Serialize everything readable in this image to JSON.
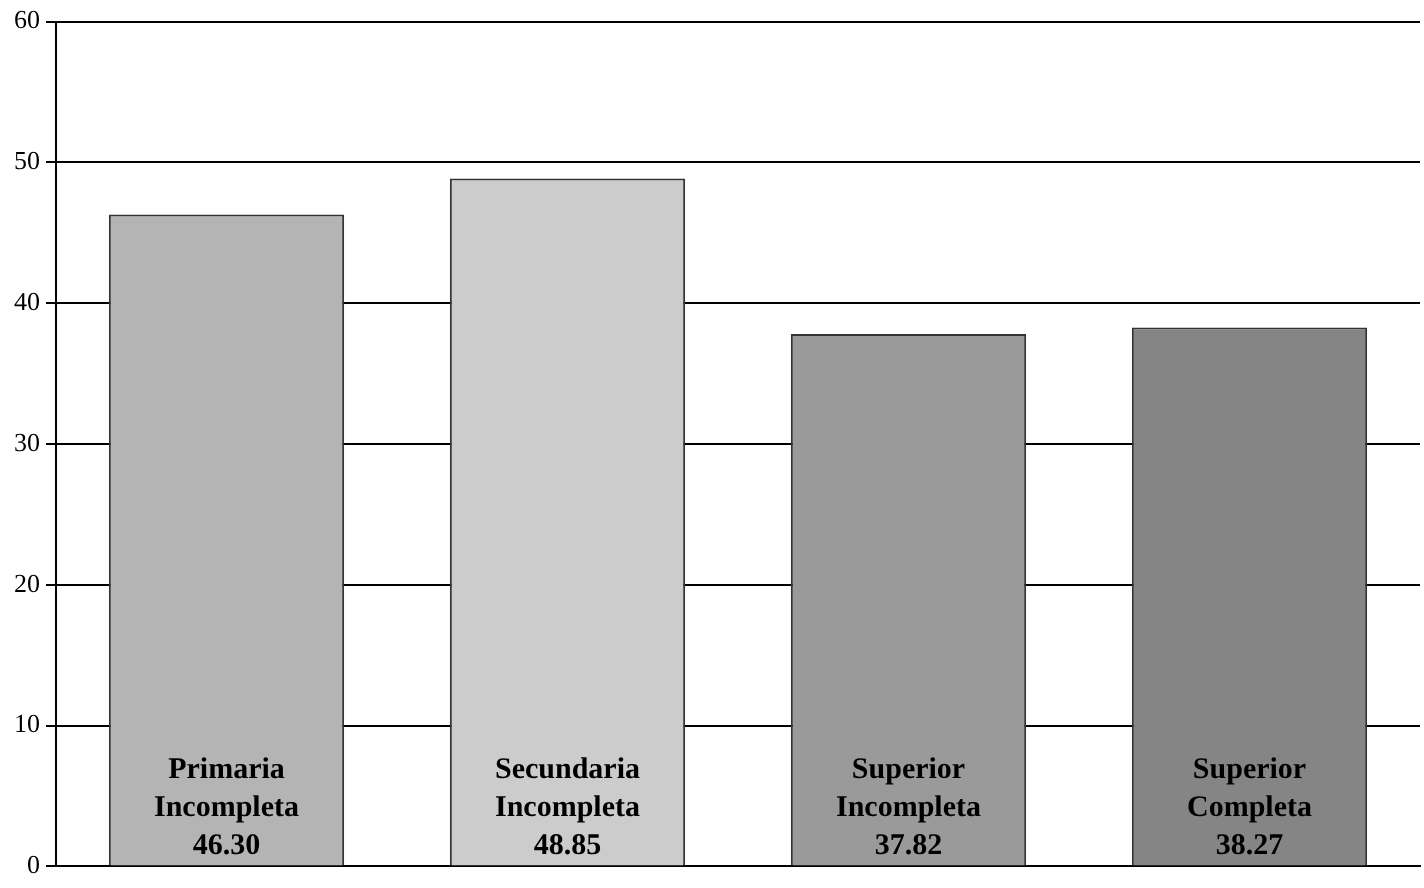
{
  "chart_data": {
    "type": "bar",
    "categories": [
      "Primaria Incompleta",
      "Secundaria Incompleta",
      "Superior Incompleta",
      "Superior Completa"
    ],
    "values": [
      46.3,
      48.85,
      37.82,
      38.27
    ],
    "value_labels": [
      "46.30",
      "48.85",
      "37.82",
      "38.27"
    ],
    "colors": [
      "#b4b4b4",
      "#cccccc",
      "#9a9a9a",
      "#858585"
    ],
    "ylim": [
      0,
      60
    ],
    "yticks": [
      0,
      10,
      20,
      30,
      40,
      50,
      60
    ],
    "grid": "y",
    "legend": false
  }
}
